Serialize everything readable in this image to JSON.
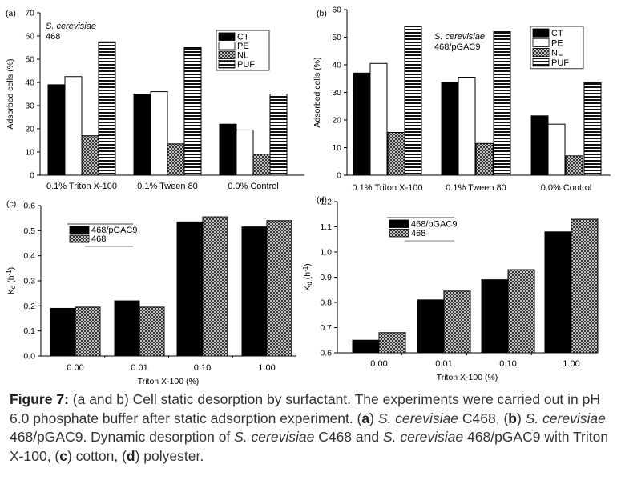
{
  "chart_data": [
    {
      "type": "bar",
      "panel_label": "(a)",
      "annotation_lines": [
        "S. cerevisiae",
        "468"
      ],
      "ylabel": "Adsorbed cells (%)",
      "ylim": [
        0,
        70
      ],
      "yticks": [
        0,
        10,
        20,
        30,
        40,
        50,
        60,
        70
      ],
      "categories": [
        "0.1% Triton X-100",
        "0.1% Tween 80",
        "0.0% Control"
      ],
      "series": [
        {
          "name": "CT",
          "pattern": "solid-black",
          "values": [
            39,
            35,
            22
          ]
        },
        {
          "name": "PE",
          "pattern": "white",
          "values": [
            42.5,
            36,
            19.5
          ]
        },
        {
          "name": "NL",
          "pattern": "crosshatch",
          "values": [
            17,
            13.5,
            9
          ]
        },
        {
          "name": "PUF",
          "pattern": "horizontal-stripes",
          "values": [
            57.5,
            55,
            35
          ]
        }
      ],
      "legend_position": "top-right"
    },
    {
      "type": "bar",
      "panel_label": "(b)",
      "annotation_lines": [
        "S. cerevisiae",
        "468/pGAC9"
      ],
      "ylabel": "Adsorbed cells (%)",
      "ylim": [
        0,
        60
      ],
      "yticks": [
        0,
        10,
        20,
        30,
        40,
        50,
        60
      ],
      "categories": [
        "0.1% Triton X-100",
        "0.1% Tween 80",
        "0.0% Control"
      ],
      "series": [
        {
          "name": "CT",
          "pattern": "solid-black",
          "values": [
            37,
            33.5,
            21.5
          ]
        },
        {
          "name": "PE",
          "pattern": "white",
          "values": [
            40.5,
            35.5,
            18.5
          ]
        },
        {
          "name": "NL",
          "pattern": "crosshatch",
          "values": [
            15.5,
            11.5,
            7
          ]
        },
        {
          "name": "PUF",
          "pattern": "horizontal-stripes",
          "values": [
            54,
            52,
            33.5
          ]
        }
      ],
      "legend_position": "top-right"
    },
    {
      "type": "bar",
      "panel_label": "(c)",
      "ylabel_main": "K",
      "ylabel_sub": "d",
      "ylabel_unit": " (h",
      "ylabel_sup": "-1",
      "ylabel_close": ")",
      "xlabel": "Triton X-100 (%)",
      "ylim": [
        0,
        0.6
      ],
      "yticks": [
        "0.0",
        "0.1",
        "0.2",
        "0.3",
        "0.4",
        "0.5",
        "0.6"
      ],
      "categories": [
        "0.00",
        "0.01",
        "0.10",
        "1.00"
      ],
      "series": [
        {
          "name": "468/pGAC9",
          "pattern": "solid-black",
          "values": [
            0.19,
            0.22,
            0.535,
            0.515
          ]
        },
        {
          "name": "468",
          "pattern": "crosshatch",
          "values": [
            0.195,
            0.195,
            0.555,
            0.54
          ]
        }
      ],
      "legend_position": "top-left"
    },
    {
      "type": "bar",
      "panel_label": "(d)",
      "ylabel_main": "K",
      "ylabel_sub": "d",
      "ylabel_unit": " (h",
      "ylabel_sup": "-1",
      "ylabel_close": ")",
      "xlabel": "Triton X-100 (%)",
      "ylim": [
        0.6,
        1.2
      ],
      "yticks": [
        "0.6",
        "0.7",
        "0.8",
        "0.9",
        "1.0",
        "1.1",
        "1.2"
      ],
      "categories": [
        "0.00",
        "0.01",
        "0.10",
        "1.00"
      ],
      "series": [
        {
          "name": "468/pGAC9",
          "pattern": "solid-black",
          "values": [
            0.65,
            0.81,
            0.89,
            1.08
          ]
        },
        {
          "name": "468",
          "pattern": "crosshatch",
          "values": [
            0.68,
            0.845,
            0.93,
            1.13
          ]
        }
      ],
      "legend_position": "top-left"
    }
  ],
  "caption": {
    "bold_label": "Figure 7:",
    "s1": " (a and b) Cell static desorption by surfactant. The experiments were carried out in pH 6.0 phosphate buffer after static adsorption experiment. (",
    "a": "a",
    "s2": ") ",
    "sc1": "S. cerevisiae",
    "s3": " C468, (",
    "b": "b",
    "s4": ") ",
    "sc2": "S. cerevisiae",
    "s5": " 468/pGAC9. Dynamic desorption of ",
    "sc3": "S. cerevisiae",
    "s6": " C468 and ",
    "sc4": "S. cerevisiae",
    "s7": " 468/pGAC9 with Triton X-100, (",
    "c": "c",
    "s8": ") cotton, (",
    "d": "d",
    "s9": ") polyester."
  }
}
